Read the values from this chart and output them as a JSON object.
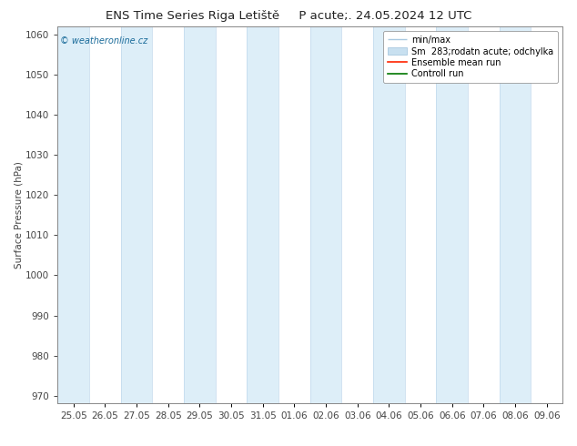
{
  "title": "ENS Time Series Riga Letiště",
  "title2": "P acute;. 24.05.2024 12 UTC",
  "ylabel": "Surface Pressure (hPa)",
  "ylim": [
    968,
    1062
  ],
  "yticks": [
    970,
    980,
    990,
    1000,
    1010,
    1020,
    1030,
    1040,
    1050,
    1060
  ],
  "xlabels": [
    "25.05",
    "26.05",
    "27.05",
    "28.05",
    "29.05",
    "30.05",
    "31.05",
    "01.06",
    "02.06",
    "03.06",
    "04.06",
    "05.06",
    "06.06",
    "07.06",
    "08.06",
    "09.06"
  ],
  "x_values": [
    0,
    1,
    2,
    3,
    4,
    5,
    6,
    7,
    8,
    9,
    10,
    11,
    12,
    13,
    14,
    15
  ],
  "shaded_bands_start": [
    0,
    2,
    4,
    6,
    8,
    10,
    12,
    14
  ],
  "band_color": "#ddeef8",
  "background_color": "#ffffff",
  "watermark": "© weatheronline.cz",
  "legend_minmax_color": "#a8c8e0",
  "legend_spread_color": "#c8e0f0",
  "legend_mean_color": "#ff2200",
  "legend_control_color": "#007700",
  "title_fontsize": 9.5,
  "label_fontsize": 7.5,
  "tick_fontsize": 7.5,
  "legend_fontsize": 7.0,
  "watermark_color": "#1a6b9a",
  "spine_color": "#888888",
  "tick_color": "#444444",
  "band_line_color": "#c0d8ec"
}
